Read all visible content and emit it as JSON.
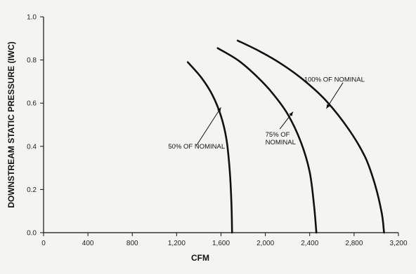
{
  "chart_data": {
    "type": "line",
    "title": "",
    "xlabel": "CFM",
    "ylabel": "DOWNSTREAM STATIC PRESSURE (IWC)",
    "xlim": [
      0,
      3200
    ],
    "ylim": [
      0,
      1.0
    ],
    "x_ticks": [
      0,
      400,
      800,
      1200,
      1600,
      2000,
      2400,
      2800,
      3200
    ],
    "x_tick_labels": [
      "0",
      "400",
      "800",
      "1,200",
      "1,600",
      "2,000",
      "2,400",
      "2,800",
      "3,200"
    ],
    "y_ticks": [
      0,
      0.2,
      0.4,
      0.6,
      0.8,
      1.0
    ],
    "y_tick_labels": [
      "0.0",
      "0.2",
      "0.4",
      "0.6",
      "0.8",
      "1.0"
    ],
    "grid": false,
    "legend": "none",
    "series": [
      {
        "x": [
          1300,
          1420,
          1520,
          1600,
          1650,
          1680,
          1695,
          1700
        ],
        "y": [
          0.79,
          0.72,
          0.64,
          0.54,
          0.43,
          0.28,
          0.12,
          0.0
        ]
      },
      {
        "x": [
          1570,
          1750,
          1900,
          2050,
          2200,
          2320,
          2400,
          2440,
          2460
        ],
        "y": [
          0.855,
          0.8,
          0.735,
          0.655,
          0.55,
          0.42,
          0.28,
          0.12,
          0.0
        ]
      },
      {
        "x": [
          1750,
          1950,
          2150,
          2350,
          2550,
          2750,
          2900,
          2990,
          3050,
          3070
        ],
        "y": [
          0.89,
          0.84,
          0.78,
          0.705,
          0.61,
          0.48,
          0.35,
          0.22,
          0.09,
          0.0
        ]
      }
    ],
    "annotations": [
      {
        "text_lines": [
          "50% OF NOMINAL"
        ],
        "point": [
          1600,
          0.58
        ],
        "label_at": [
          1380,
          0.39
        ],
        "leader_from": [
          1380,
          0.405
        ]
      },
      {
        "text_lines": [
          "75% OF",
          "NOMINAL"
        ],
        "point": [
          2250,
          0.56
        ],
        "label_at": [
          2000,
          0.445
        ],
        "leader_from": [
          2130,
          0.48
        ]
      },
      {
        "text_lines": [
          "100% OF NOMINAL"
        ],
        "point": [
          2550,
          0.575
        ],
        "label_at": [
          2350,
          0.7
        ],
        "leader_from": [
          2700,
          0.695
        ]
      }
    ]
  }
}
